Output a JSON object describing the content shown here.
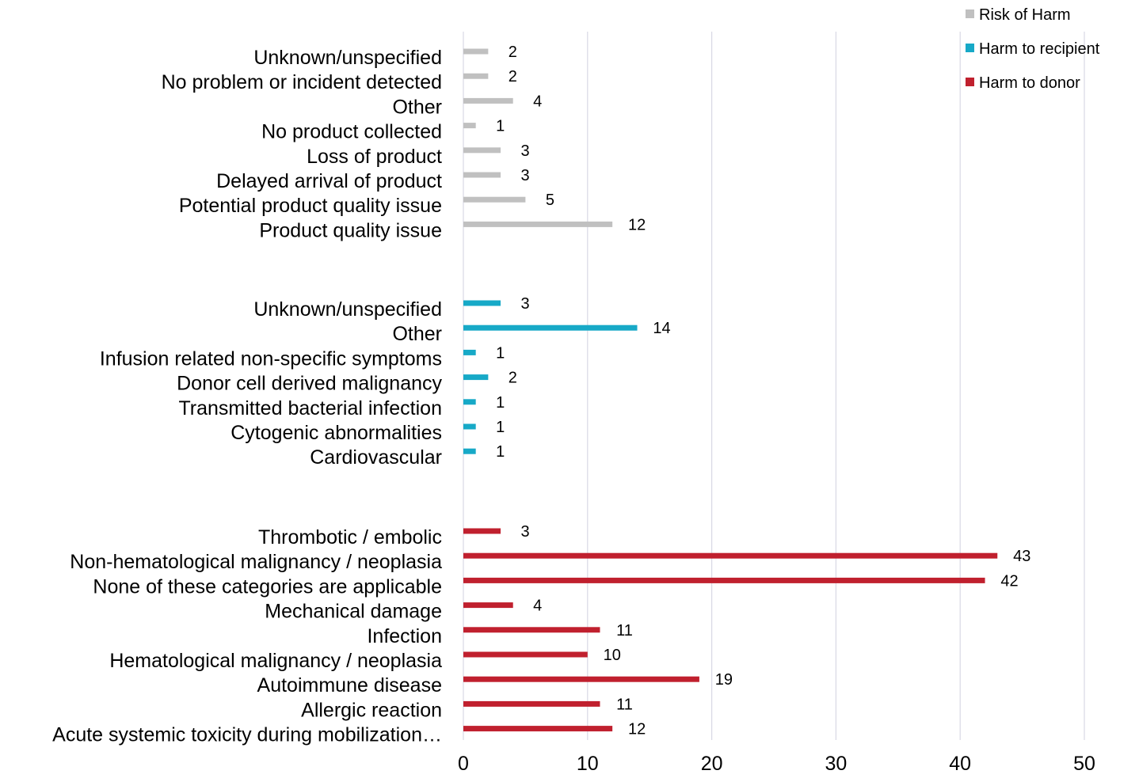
{
  "chart_data": {
    "type": "bar",
    "orientation": "horizontal",
    "xlim": [
      0,
      50
    ],
    "x_ticks": [
      "0",
      "10",
      "20",
      "30",
      "40",
      "50"
    ],
    "grid": "vertical",
    "legend_position": "top-right",
    "series": [
      {
        "name": "Risk of Harm",
        "color": "#c0c0c0",
        "categories": [
          "Unknown/unspecified",
          "No problem or incident detected",
          "Other",
          "No product collected",
          "Loss of product",
          "Delayed arrival of product",
          "Potential product quality issue",
          "Product quality issue"
        ],
        "values": [
          2,
          2,
          4,
          1,
          3,
          3,
          5,
          12
        ]
      },
      {
        "name": "Harm to recipient",
        "color": "#17a9c7",
        "categories": [
          "Unknown/unspecified",
          "Other",
          "Infusion related non-specific symptoms",
          "Donor cell derived malignancy",
          "Transmitted bacterial infection",
          "Cytogenic abnormalities",
          "Cardiovascular"
        ],
        "values": [
          3,
          14,
          1,
          2,
          1,
          1,
          1
        ]
      },
      {
        "name": "Harm to donor",
        "color": "#c0202e",
        "categories": [
          "Thrombotic / embolic",
          "Non-hematological malignancy / neoplasia",
          "None of these categories are applicable",
          "Mechanical damage",
          "Infection",
          "Hematological malignancy / neoplasia",
          "Autoimmune disease",
          "Allergic reaction",
          "Acute systemic toxicity during mobilization…"
        ],
        "values": [
          3,
          43,
          42,
          4,
          11,
          10,
          19,
          11,
          12
        ]
      }
    ]
  }
}
